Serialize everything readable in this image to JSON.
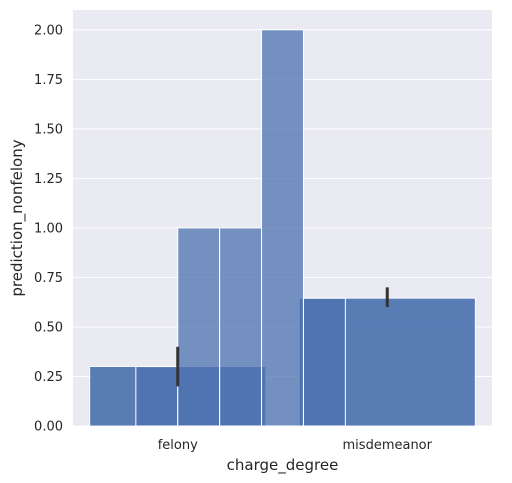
{
  "chart_data": {
    "type": "bar",
    "xlabel": "charge_degree",
    "ylabel": "prediction_nonfelony",
    "ylim": [
      0,
      2.1
    ],
    "yticks": [
      "0.00",
      "0.25",
      "0.50",
      "0.75",
      "1.00",
      "1.25",
      "1.50",
      "1.75",
      "2.00"
    ],
    "categories": [
      "felony",
      "misdemeanor"
    ],
    "bars": [
      {
        "category": "felony",
        "value": 0.3,
        "ci": [
          0.2,
          0.4
        ]
      },
      {
        "category": "misdemeanor",
        "value": 0.645,
        "ci": [
          0.6,
          0.7
        ]
      }
    ],
    "histogram_bins": [
      {
        "x_start": -0.2,
        "x_end": 0.0,
        "count": 0.3
      },
      {
        "x_start": 0.0,
        "x_end": 0.2,
        "count": 1.0
      },
      {
        "x_start": 0.2,
        "x_end": 0.4,
        "count": 1.0
      },
      {
        "x_start": 0.4,
        "x_end": 0.6,
        "count": 2.0
      },
      {
        "x_start": 0.6,
        "x_end": 0.8,
        "count": 0.645
      }
    ],
    "grid": true,
    "colors": {
      "background": "#eaeaf2",
      "grid": "#ffffff",
      "bar": "#4c72b0",
      "hist": "#4c72b0",
      "errorbar": "#333333"
    }
  }
}
